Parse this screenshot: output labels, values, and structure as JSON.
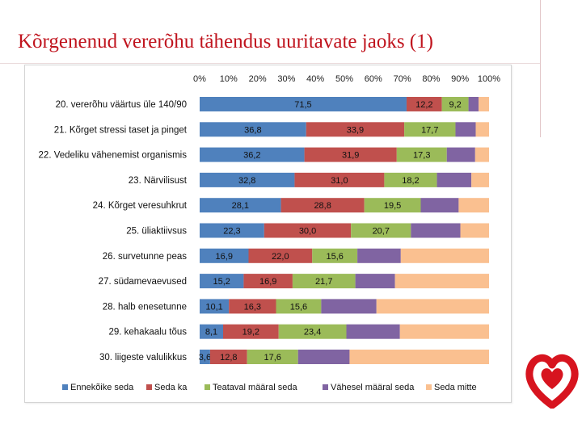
{
  "title": "Kõrgenenud vererõhu tähendus uuritavate jaoks (1)",
  "chart_data": {
    "type": "bar",
    "orientation": "horizontal",
    "stacked": true,
    "percent": true,
    "x_ticks": [
      "0%",
      "10%",
      "20%",
      "30%",
      "40%",
      "50%",
      "60%",
      "70%",
      "80%",
      "90%",
      "100%"
    ],
    "xlim": [
      0,
      100
    ],
    "categories": [
      "20. vererõhu väärtus üle 140/90",
      "21. Kõrget stressi taset ja pinget",
      "22. Vedeliku vähenemist organismis",
      "23. Närvilisust",
      "24. Kõrget veresuhkrut",
      "25. üliaktiivsus",
      "26. survetunne peas",
      "27. südamevaevused",
      "28. halb enesetunne",
      "29. kehakaalu tõus",
      "30. liigeste valulikkus"
    ],
    "series": [
      {
        "name": "Ennekõike seda",
        "color": "#4f81bd",
        "values": [
          71.5,
          36.8,
          36.2,
          32.8,
          28.1,
          22.3,
          16.9,
          15.2,
          10.1,
          8.1,
          3.6
        ],
        "labels": [
          "71,5",
          "36,8",
          "36,2",
          "32,8",
          "28,1",
          "22,3",
          "16,9",
          "15,2",
          "10,1",
          "8,1",
          "3,6"
        ]
      },
      {
        "name": "Seda ka",
        "color": "#c0504d",
        "values": [
          12.2,
          33.9,
          31.9,
          31.0,
          28.8,
          30.0,
          22.0,
          16.9,
          16.3,
          19.2,
          12.8
        ],
        "labels": [
          "12,2",
          "33,9",
          "31,9",
          "31,0",
          "28,8",
          "30,0",
          "22,0",
          "16,9",
          "16,3",
          "19,2",
          "12,8"
        ]
      },
      {
        "name": "Teataval määral seda",
        "color": "#9bbb59",
        "values": [
          9.2,
          17.7,
          17.3,
          18.2,
          19.5,
          20.7,
          15.6,
          21.7,
          15.6,
          23.4,
          17.6
        ],
        "labels": [
          "9,2",
          "17,7",
          "17,3",
          "18,2",
          "19,5",
          "20,7",
          "15,6",
          "21,7",
          "15,6",
          "23,4",
          "17,6"
        ]
      },
      {
        "name": "Vähesel määral seda",
        "color": "#8064a2",
        "values": [
          3.5,
          7.0,
          9.8,
          11.9,
          13.1,
          17.1,
          15.0,
          13.7,
          19.1,
          18.5,
          17.8
        ],
        "labels": [
          "",
          "",
          "",
          "",
          "",
          "",
          "",
          "",
          "",
          "",
          ""
        ]
      },
      {
        "name": "Seda mitte",
        "color": "#fac090",
        "values": [
          3.6,
          4.6,
          4.8,
          6.1,
          10.5,
          9.9,
          30.5,
          32.5,
          38.9,
          30.8,
          48.2
        ],
        "labels": [
          "",
          "",
          "",
          "",
          "",
          "",
          "",
          "",
          "",
          "",
          ""
        ]
      }
    ]
  }
}
